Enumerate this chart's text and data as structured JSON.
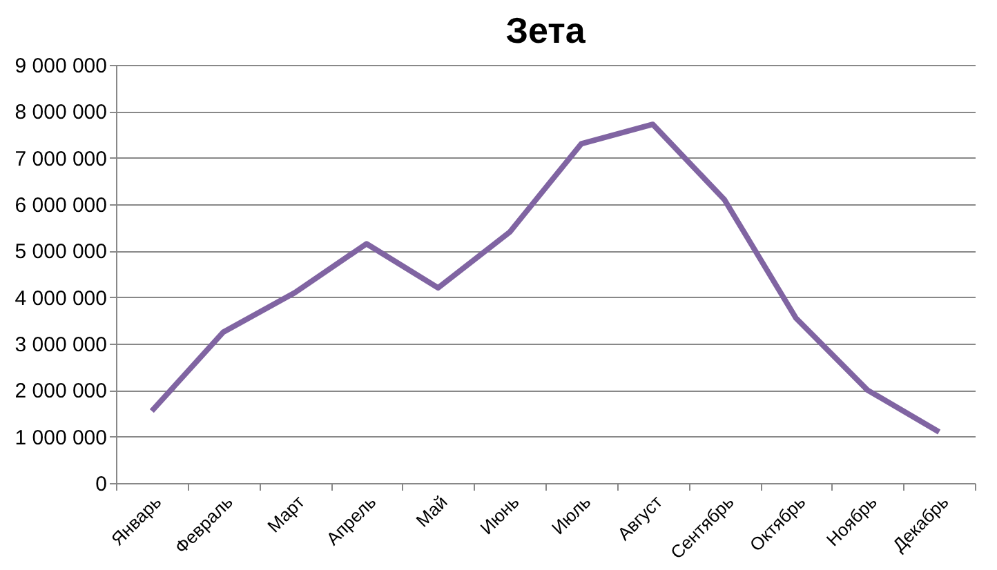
{
  "chart_data": {
    "type": "line",
    "title": "Зета",
    "categories": [
      "Январь",
      "Февраль",
      "Март",
      "Апрель",
      "Май",
      "Июнь",
      "Июль",
      "Август",
      "Сентябрь",
      "Октябрь",
      "Ноябрь",
      "Декабрь"
    ],
    "series": [
      {
        "color": "#8064a2",
        "values": [
          1550000,
          3250000,
          4100000,
          5150000,
          4200000,
          5400000,
          7300000,
          7720000,
          6100000,
          3550000,
          2000000,
          1100000
        ]
      }
    ],
    "ylim": [
      0,
      9000000
    ],
    "yticks": [
      0,
      {
        "value": 1000000,
        "label": "1 000 000"
      },
      {
        "value": 2000000,
        "label": "2 000 000"
      },
      {
        "value": 3000000,
        "label": "3 000 000"
      },
      {
        "value": 4000000,
        "label": "4 000 000"
      },
      {
        "value": 5000000,
        "label": "5 000 000"
      },
      {
        "value": 6000000,
        "label": "6 000 000"
      },
      {
        "value": 7000000,
        "label": "7 000 000"
      },
      {
        "value": 8000000,
        "label": "8 000 000"
      },
      {
        "value": 9000000,
        "label": "9 000 000"
      }
    ],
    "grid": "y",
    "legend": false,
    "marker": "none",
    "line_style": "solid"
  }
}
